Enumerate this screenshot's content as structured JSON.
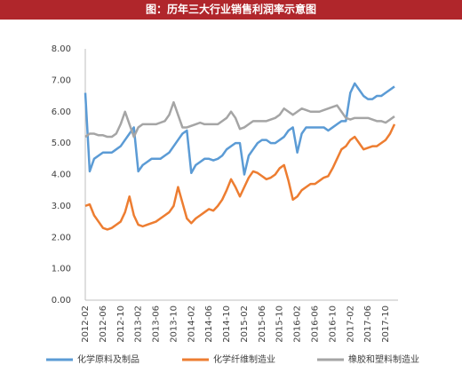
{
  "chart_data": {
    "type": "line",
    "title": "图：历年三大行业销售利润率示意图",
    "categories": [
      "2012-02",
      null,
      null,
      null,
      "2012-06",
      null,
      null,
      null,
      "2012-10",
      null,
      null,
      null,
      "2013-02",
      null,
      null,
      null,
      "2013-06",
      null,
      null,
      null,
      "2013-10",
      null,
      null,
      null,
      "2014-02",
      null,
      null,
      null,
      "2014-06",
      null,
      null,
      null,
      "2014-10",
      null,
      null,
      null,
      "2015-02",
      null,
      null,
      null,
      "2015-06",
      null,
      null,
      null,
      "2015-10",
      null,
      null,
      null,
      "2016-02",
      null,
      null,
      null,
      "2016-06",
      null,
      null,
      null,
      "2016-10",
      null,
      null,
      null,
      "2017-02",
      null,
      null,
      null,
      "2017-06",
      null,
      null,
      null,
      "2017-10",
      null,
      null
    ],
    "series": [
      {
        "name": "化学原料及制品",
        "color": "#5b9bd5",
        "values": [
          6.6,
          4.1,
          4.5,
          4.6,
          4.7,
          4.7,
          4.7,
          4.8,
          4.9,
          5.1,
          5.3,
          5.5,
          4.1,
          4.3,
          4.4,
          4.5,
          4.5,
          4.5,
          4.6,
          4.7,
          4.9,
          5.1,
          5.3,
          5.4,
          4.05,
          4.3,
          4.4,
          4.5,
          4.5,
          4.45,
          4.5,
          4.6,
          4.8,
          4.9,
          5.0,
          5.0,
          4.0,
          4.6,
          4.8,
          5.0,
          5.1,
          5.1,
          5.0,
          5.0,
          5.1,
          5.2,
          5.4,
          5.5,
          4.7,
          5.3,
          5.5,
          5.5,
          5.5,
          5.5,
          5.5,
          5.4,
          5.5,
          5.6,
          5.7,
          5.7,
          6.6,
          6.9,
          6.7,
          6.5,
          6.4,
          6.4,
          6.5,
          6.5,
          6.6,
          6.7,
          6.8
        ]
      },
      {
        "name": "化学纤维制造业",
        "color": "#ed7d31",
        "values": [
          3.0,
          3.05,
          2.7,
          2.5,
          2.3,
          2.25,
          2.3,
          2.4,
          2.5,
          2.8,
          3.3,
          2.7,
          2.4,
          2.35,
          2.4,
          2.45,
          2.5,
          2.6,
          2.7,
          2.8,
          3.0,
          3.6,
          3.1,
          2.6,
          2.45,
          2.6,
          2.7,
          2.8,
          2.9,
          2.85,
          3.0,
          3.2,
          3.5,
          3.85,
          3.6,
          3.3,
          3.6,
          3.9,
          4.1,
          4.05,
          3.95,
          3.85,
          3.9,
          4.0,
          4.2,
          4.3,
          3.8,
          3.2,
          3.3,
          3.5,
          3.6,
          3.7,
          3.7,
          3.8,
          3.9,
          3.95,
          4.2,
          4.5,
          4.8,
          4.9,
          5.1,
          5.2,
          5.0,
          4.8,
          4.85,
          4.9,
          4.9,
          5.0,
          5.1,
          5.3,
          5.6
        ]
      },
      {
        "name": "橡胶和塑料制造业",
        "color": "#a5a5a5",
        "values": [
          5.2,
          5.3,
          5.3,
          5.25,
          5.25,
          5.2,
          5.2,
          5.3,
          5.6,
          6.0,
          5.6,
          5.2,
          5.5,
          5.6,
          5.6,
          5.6,
          5.6,
          5.65,
          5.7,
          5.9,
          6.3,
          5.9,
          5.5,
          5.5,
          5.55,
          5.6,
          5.65,
          5.6,
          5.6,
          5.6,
          5.6,
          5.7,
          5.8,
          6.0,
          5.8,
          5.45,
          5.5,
          5.6,
          5.7,
          5.7,
          5.7,
          5.7,
          5.75,
          5.8,
          5.9,
          6.1,
          6.0,
          5.9,
          6.0,
          6.1,
          6.05,
          6.0,
          6.0,
          6.0,
          6.05,
          6.1,
          6.15,
          6.2,
          6.0,
          5.8,
          5.75,
          5.8,
          5.8,
          5.8,
          5.8,
          5.75,
          5.7,
          5.7,
          5.65,
          5.75,
          5.85
        ]
      }
    ],
    "ylim": [
      0,
      8
    ],
    "yticks": [
      {
        "value": 0,
        "label": "0.00"
      },
      {
        "value": 1,
        "label": "1.00"
      },
      {
        "value": 2,
        "label": "2.00"
      },
      {
        "value": 3,
        "label": "3.00"
      },
      {
        "value": 4,
        "label": "4.00"
      },
      {
        "value": 5,
        "label": "5.00"
      },
      {
        "value": 6,
        "label": "6.00"
      },
      {
        "value": 7,
        "label": "7.00"
      },
      {
        "value": 8,
        "label": "8.00"
      }
    ],
    "grid": false,
    "legend": "bottom"
  }
}
